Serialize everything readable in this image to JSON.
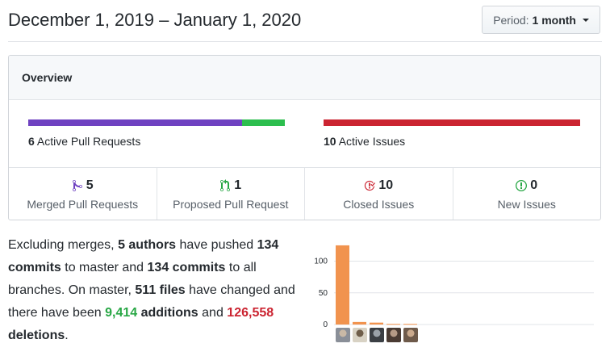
{
  "header": {
    "date_range": "December 1, 2019 – January 1, 2020",
    "period_label": "Period:",
    "period_value": "1 month"
  },
  "overview": {
    "title": "Overview",
    "pull_requests": {
      "count": "6",
      "label": "Active Pull Requests",
      "merged_fraction": 0.833,
      "open_fraction": 0.167
    },
    "issues": {
      "count": "10",
      "label": "Active Issues",
      "closed_fraction": 1.0
    },
    "stats": [
      {
        "icon": "git-merge-icon",
        "count": "5",
        "label": "Merged Pull Requests",
        "color": "#6f42c1"
      },
      {
        "icon": "git-pull-request-icon",
        "count": "1",
        "label": "Proposed Pull Request",
        "color": "#28a745"
      },
      {
        "icon": "issue-closed-icon",
        "count": "10",
        "label": "Closed Issues",
        "color": "#cb2431"
      },
      {
        "icon": "issue-opened-icon",
        "count": "0",
        "label": "New Issues",
        "color": "#28a745"
      }
    ],
    "colors": {
      "merged": "#6f42c1",
      "open": "#2cbe4e",
      "issues": "#cb2431"
    }
  },
  "summary": {
    "t1": "Excluding merges, ",
    "authors": "5 authors",
    "t2": " have pushed ",
    "commits_master": "134 commits",
    "t3": " to master and ",
    "commits_all": "134 commits",
    "t4": " to all branches. On master, ",
    "files": "511 files",
    "t5": " have changed and there have been ",
    "additions_num": "9,414",
    "additions_word": " additions",
    "t6": " and ",
    "deletions_num": "126,558",
    "deletions_word": " deletions",
    "t7": "."
  },
  "chart_data": {
    "type": "bar",
    "categories": [
      "author-1",
      "author-2",
      "author-3",
      "author-4",
      "author-5"
    ],
    "values": [
      125,
      4,
      3,
      1,
      1
    ],
    "yticks": [
      "0",
      "50",
      "100"
    ],
    "ylim": [
      0,
      130
    ],
    "bar_color": "#f1934e",
    "grid": true
  }
}
